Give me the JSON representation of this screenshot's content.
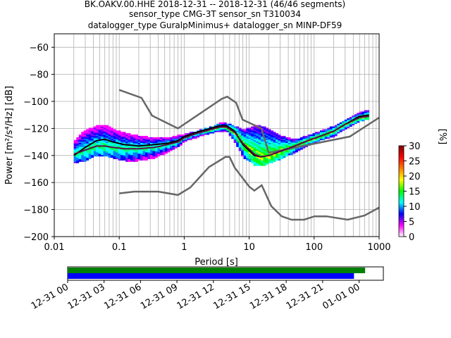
{
  "chart_data": [
    {
      "type": "heatmap",
      "title_lines": [
        "BK.OAKV.00.HHE   2018-12-31 -- 2018-12-31  (46/46 segments)",
        "sensor_type CMG-3T sensor_sn T310034",
        "datalogger_type GuralpMinimus+ datalogger_sn MINP-DF59"
      ],
      "xlabel": "Period [s]",
      "ylabel": "Power [m²/s⁴/Hz] [dB]",
      "x_scale": "log",
      "xlim": [
        0.01,
        1000
      ],
      "ylim": [
        -200,
        -50
      ],
      "x_ticks": [
        {
          "value": 0.01,
          "label": "0.01"
        },
        {
          "value": 0.1,
          "label": "0.1"
        },
        {
          "value": 1,
          "label": "1"
        },
        {
          "value": 10,
          "label": "10"
        },
        {
          "value": 100,
          "label": "100"
        },
        {
          "value": 1000,
          "label": "1000"
        }
      ],
      "y_ticks": [
        {
          "value": -60,
          "label": "−60"
        },
        {
          "value": -80,
          "label": "−80"
        },
        {
          "value": -100,
          "label": "−100"
        },
        {
          "value": -120,
          "label": "−120"
        },
        {
          "value": -140,
          "label": "−140"
        },
        {
          "value": -160,
          "label": "−160"
        },
        {
          "value": -180,
          "label": "−180"
        },
        {
          "value": -200,
          "label": "−200"
        }
      ],
      "grid": true,
      "colorbar": {
        "label": "[%]",
        "range": [
          0,
          30
        ],
        "ticks": [
          {
            "value": 0,
            "label": "0"
          },
          {
            "value": 5,
            "label": "5"
          },
          {
            "value": 10,
            "label": "10"
          },
          {
            "value": 15,
            "label": "15"
          },
          {
            "value": 20,
            "label": "20"
          },
          {
            "value": 25,
            "label": "25"
          },
          {
            "value": 30,
            "label": "30"
          }
        ],
        "colors": [
          "#ffffff",
          "#ff00ff",
          "#0000ff",
          "#00ffff",
          "#00ff00",
          "#ffff00",
          "#ff8000",
          "#ff0000",
          "#800000"
        ]
      },
      "series": [
        {
          "role": "high-noise-model",
          "color": "#666666",
          "points": [
            [
              0.1,
              -91.5
            ],
            [
              0.22,
              -97.4
            ],
            [
              0.32,
              -110.5
            ],
            [
              0.8,
              -120
            ],
            [
              3.8,
              -98
            ],
            [
              4.6,
              -96.5
            ],
            [
              6.3,
              -101
            ],
            [
              7.9,
              -113.5
            ],
            [
              15.4,
              -120
            ],
            [
              20,
              -138
            ],
            [
              354.8,
              -126
            ],
            [
              1000,
              -112
            ]
          ]
        },
        {
          "role": "low-noise-model",
          "color": "#666666",
          "points": [
            [
              0.1,
              -168
            ],
            [
              0.17,
              -166.7
            ],
            [
              0.4,
              -166.7
            ],
            [
              0.8,
              -169.2
            ],
            [
              1.24,
              -163.7
            ],
            [
              2.4,
              -148.6
            ],
            [
              4.3,
              -141.1
            ],
            [
              5,
              -141.1
            ],
            [
              6,
              -149
            ],
            [
              10,
              -163
            ],
            [
              12,
              -166
            ],
            [
              15.6,
              -162
            ],
            [
              21.9,
              -177.5
            ],
            [
              31.6,
              -185
            ],
            [
              45,
              -187.5
            ],
            [
              70,
              -187.5
            ],
            [
              101,
              -185
            ],
            [
              154,
              -185
            ],
            [
              328,
              -187.5
            ],
            [
              600,
              -184.4
            ],
            [
              1000,
              -178.5
            ]
          ]
        },
        {
          "role": "mode",
          "color": "#000000",
          "points": [
            [
              0.02,
              -140
            ],
            [
              0.03,
              -134
            ],
            [
              0.045,
              -129
            ],
            [
              0.06,
              -128
            ],
            [
              0.08,
              -130
            ],
            [
              0.12,
              -132
            ],
            [
              0.2,
              -133
            ],
            [
              0.35,
              -132
            ],
            [
              0.55,
              -131
            ],
            [
              0.8,
              -129
            ],
            [
              1,
              -126
            ],
            [
              1.5,
              -123
            ],
            [
              2.5,
              -120
            ],
            [
              3.5,
              -118
            ],
            [
              4.5,
              -118
            ],
            [
              6,
              -122
            ],
            [
              8,
              -132
            ],
            [
              12,
              -140
            ],
            [
              15,
              -141
            ],
            [
              20,
              -140
            ],
            [
              30,
              -137
            ],
            [
              50,
              -133
            ],
            [
              80,
              -129
            ],
            [
              120,
              -126
            ],
            [
              200,
              -122
            ],
            [
              300,
              -117
            ],
            [
              500,
              -111
            ],
            [
              700,
              -110
            ]
          ]
        },
        {
          "role": "mean",
          "color": "#5a0a4a",
          "points": [
            [
              0.02,
              -139
            ],
            [
              0.03,
              -136
            ],
            [
              0.045,
              -133
            ],
            [
              0.06,
              -133
            ],
            [
              0.08,
              -134
            ],
            [
              0.12,
              -135
            ],
            [
              0.2,
              -135
            ],
            [
              0.35,
              -134
            ],
            [
              0.55,
              -132
            ],
            [
              0.8,
              -130
            ],
            [
              1,
              -127
            ],
            [
              1.5,
              -124
            ],
            [
              2.5,
              -121
            ],
            [
              3.5,
              -119
            ],
            [
              4.5,
              -119
            ],
            [
              6,
              -123
            ],
            [
              8,
              -131
            ],
            [
              12,
              -139
            ],
            [
              15,
              -141
            ],
            [
              20,
              -140
            ],
            [
              30,
              -137
            ],
            [
              50,
              -133
            ],
            [
              80,
              -129
            ],
            [
              120,
              -126
            ],
            [
              200,
              -122
            ],
            [
              300,
              -117
            ],
            [
              500,
              -112
            ],
            [
              700,
              -111
            ]
          ]
        }
      ],
      "density_band": {
        "x": [
          0.02,
          0.03,
          0.045,
          0.06,
          0.08,
          0.12,
          0.2,
          0.35,
          0.55,
          0.8,
          1,
          1.5,
          2.5,
          3.5,
          4.5,
          6,
          8,
          12,
          15,
          20,
          30,
          50,
          80,
          120,
          200,
          300,
          500,
          700
        ],
        "upper": [
          -129,
          -121,
          -118,
          -117,
          -120,
          -123,
          -125,
          -127,
          -127,
          -125,
          -124,
          -122,
          -119,
          -116,
          -116,
          -118,
          -121,
          -118,
          -118,
          -120,
          -125,
          -128,
          -125,
          -122,
          -118,
          -114,
          -108,
          -106
        ],
        "lower": [
          -146,
          -144,
          -140,
          -140,
          -142,
          -144,
          -144,
          -142,
          -138,
          -134,
          -130,
          -127,
          -124,
          -122,
          -122,
          -130,
          -141,
          -147,
          -148,
          -146,
          -143,
          -138,
          -133,
          -129,
          -126,
          -121,
          -115,
          -113
        ]
      }
    },
    {
      "type": "timeline",
      "xlim": [
        "2018-12-31 00:00",
        "2019-01-01 02:00"
      ],
      "tick_labels": [
        "12-31 00",
        "12-31 03",
        "12-31 06",
        "12-31 09",
        "12-31 12",
        "12-31 15",
        "12-31 18",
        "12-31 21",
        "01-01 00"
      ],
      "bars": [
        {
          "color": "#008000",
          "start": "2018-12-31 00:00",
          "end": "2019-01-01 00:30"
        },
        {
          "color": "#0000ff",
          "start": "2018-12-31 00:00",
          "end": "2018-12-31 23:35"
        }
      ]
    }
  ]
}
